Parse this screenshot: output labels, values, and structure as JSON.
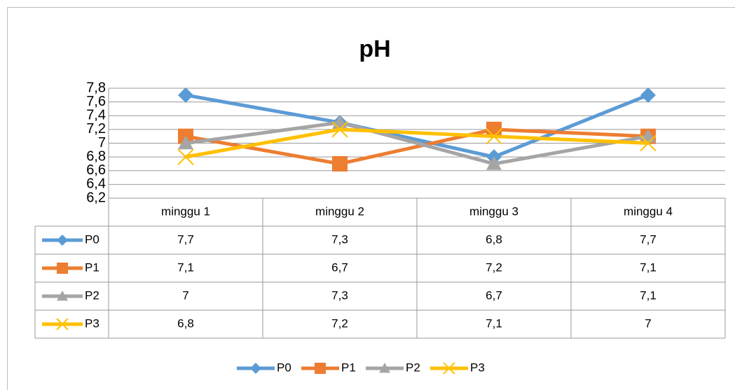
{
  "chart_data": {
    "type": "line",
    "title": "pH",
    "categories": [
      "minggu 1",
      "minggu 2",
      "minggu 3",
      "minggu 4"
    ],
    "series": [
      {
        "name": "P0",
        "color": "#5b9bd5",
        "marker": "diamond",
        "values": [
          7.7,
          7.3,
          6.8,
          7.7
        ],
        "value_labels": [
          "7,7",
          "7,3",
          "6,8",
          "7,7"
        ]
      },
      {
        "name": "P1",
        "color": "#ed7d31",
        "marker": "square",
        "values": [
          7.1,
          6.7,
          7.2,
          7.1
        ],
        "value_labels": [
          "7,1",
          "6,7",
          "7,2",
          "7,1"
        ]
      },
      {
        "name": "P2",
        "color": "#a5a5a5",
        "marker": "triangle",
        "values": [
          7,
          7.3,
          6.7,
          7.1
        ],
        "value_labels": [
          "7",
          "7,3",
          "6,7",
          "7,1"
        ]
      },
      {
        "name": "P3",
        "color": "#ffc000",
        "marker": "x",
        "values": [
          6.8,
          7.2,
          7.1,
          7
        ],
        "value_labels": [
          "6,8",
          "7,2",
          "7,1",
          "7"
        ]
      }
    ],
    "ylim": [
      6.2,
      7.8
    ],
    "yticks": [
      {
        "value": 6.2,
        "label": "6,2"
      },
      {
        "value": 6.4,
        "label": "6,4"
      },
      {
        "value": 6.6,
        "label": "6,6"
      },
      {
        "value": 6.8,
        "label": "6,8"
      },
      7,
      {
        "value": 7.2,
        "label": "7,2"
      },
      {
        "value": 7.4,
        "label": "7,4"
      },
      {
        "value": 7.6,
        "label": "7,6"
      },
      {
        "value": 7.8,
        "label": "7,8"
      }
    ],
    "grid": true,
    "legend": "bottom",
    "data_table": true
  }
}
